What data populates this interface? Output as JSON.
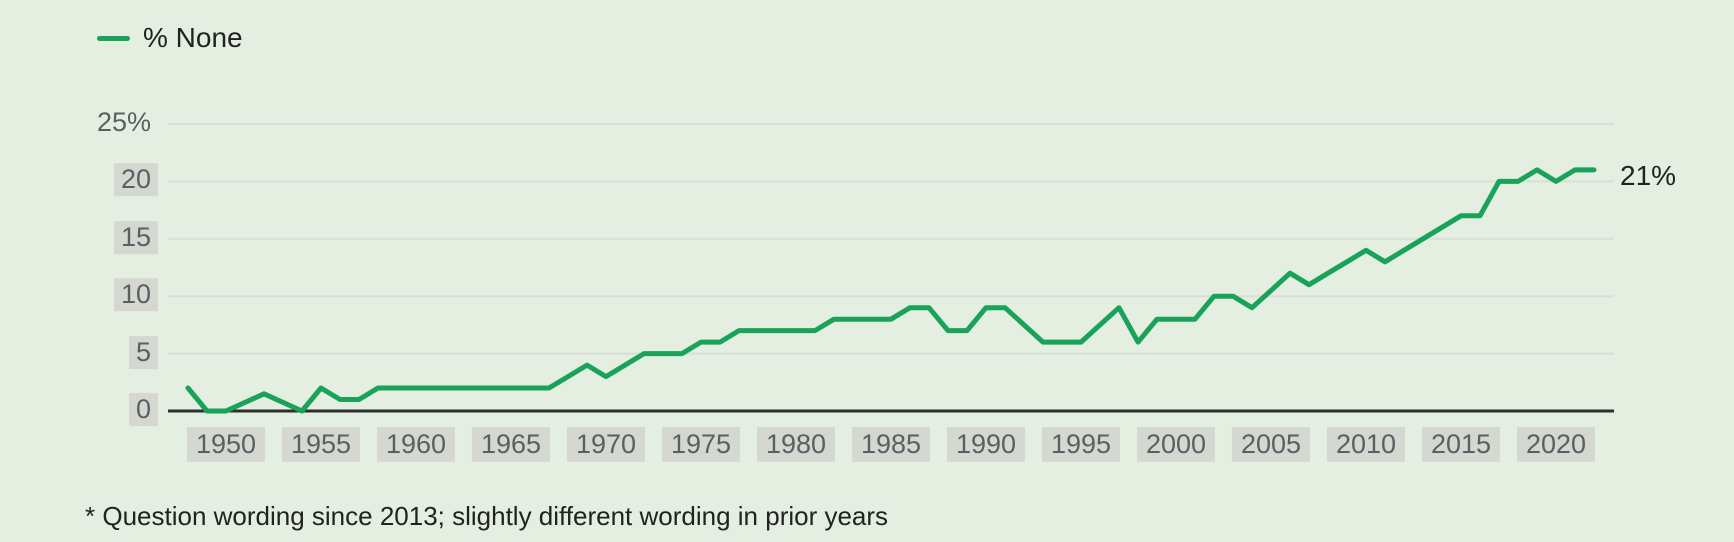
{
  "legend": {
    "label": "% None"
  },
  "footnote": "* Question wording since 2013; slightly different wording in prior years",
  "colors": {
    "background": "#e4efe1",
    "line": "#19a259",
    "grid": "#d9ded7",
    "zero_axis": "#2d2f2e",
    "tick_text": "#5b5f61",
    "tick_box": "#d4d8d1",
    "text": "#212323"
  },
  "chart_data": {
    "type": "line",
    "title": "% None",
    "xlabel": "",
    "ylabel": "",
    "xlim": [
      1948,
      2022
    ],
    "ylim": [
      0,
      25
    ],
    "grid": "horizontal",
    "legend_position": "top-left",
    "xticks": [
      1950,
      1955,
      1960,
      1965,
      1970,
      1975,
      1980,
      1985,
      1990,
      1995,
      2000,
      2005,
      2010,
      2015,
      2020
    ],
    "yticks": [
      {
        "value": 0,
        "label": "0",
        "boxed": true
      },
      {
        "value": 5,
        "label": "5",
        "boxed": true
      },
      {
        "value": 10,
        "label": "10",
        "boxed": true
      },
      {
        "value": 15,
        "label": "15",
        "boxed": true
      },
      {
        "value": 20,
        "label": "20",
        "boxed": true
      },
      {
        "value": 25,
        "label": "25%",
        "boxed": false
      }
    ],
    "end_annotation": {
      "year": 2022,
      "value": 21,
      "label": "21%"
    },
    "series": [
      {
        "name": "% None",
        "points": [
          [
            1948,
            2
          ],
          [
            1949,
            0
          ],
          [
            1950,
            0
          ],
          [
            1952,
            1.5
          ],
          [
            1954,
            0
          ],
          [
            1955,
            2
          ],
          [
            1956,
            1
          ],
          [
            1957,
            1
          ],
          [
            1958,
            2
          ],
          [
            1959,
            2
          ],
          [
            1960,
            2
          ],
          [
            1961,
            2
          ],
          [
            1962,
            2
          ],
          [
            1963,
            2
          ],
          [
            1964,
            2
          ],
          [
            1965,
            2
          ],
          [
            1966,
            2
          ],
          [
            1967,
            2
          ],
          [
            1968,
            3
          ],
          [
            1969,
            4
          ],
          [
            1970,
            3
          ],
          [
            1971,
            4
          ],
          [
            1972,
            5
          ],
          [
            1973,
            5
          ],
          [
            1974,
            5
          ],
          [
            1975,
            6
          ],
          [
            1976,
            6
          ],
          [
            1977,
            7
          ],
          [
            1978,
            7
          ],
          [
            1979,
            7
          ],
          [
            1980,
            7
          ],
          [
            1981,
            7
          ],
          [
            1982,
            8
          ],
          [
            1983,
            8
          ],
          [
            1984,
            8
          ],
          [
            1985,
            8
          ],
          [
            1986,
            9
          ],
          [
            1987,
            9
          ],
          [
            1988,
            7
          ],
          [
            1989,
            7
          ],
          [
            1990,
            9
          ],
          [
            1991,
            9
          ],
          [
            1992,
            7.5
          ],
          [
            1993,
            6
          ],
          [
            1994,
            6
          ],
          [
            1995,
            6
          ],
          [
            1996,
            7.5
          ],
          [
            1997,
            9
          ],
          [
            1998,
            6
          ],
          [
            1999,
            8
          ],
          [
            2000,
            8
          ],
          [
            2001,
            8
          ],
          [
            2002,
            10
          ],
          [
            2003,
            10
          ],
          [
            2004,
            9
          ],
          [
            2005,
            10.5
          ],
          [
            2006,
            12
          ],
          [
            2007,
            11
          ],
          [
            2008,
            12
          ],
          [
            2009,
            13
          ],
          [
            2010,
            14
          ],
          [
            2011,
            13
          ],
          [
            2012,
            14
          ],
          [
            2013,
            15
          ],
          [
            2014,
            16
          ],
          [
            2015,
            17
          ],
          [
            2016,
            17
          ],
          [
            2017,
            20
          ],
          [
            2018,
            20
          ],
          [
            2019,
            21
          ],
          [
            2020,
            20
          ],
          [
            2021,
            21
          ],
          [
            2022,
            21
          ]
        ]
      }
    ]
  }
}
